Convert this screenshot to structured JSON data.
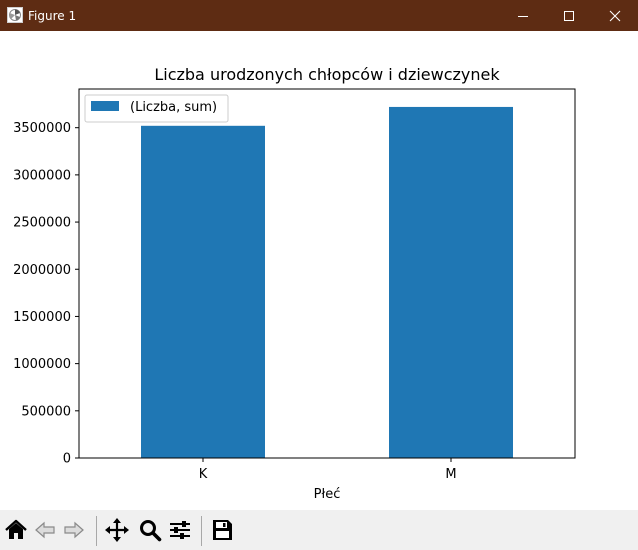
{
  "window": {
    "title": "Figure 1",
    "icon": "matplotlib-icon",
    "controls": [
      "minimize-icon",
      "maximize-icon",
      "close-icon"
    ]
  },
  "chart_data": {
    "type": "bar",
    "title": "Liczba urodzonych chłopców i dziewczynek",
    "xlabel": "Płeć",
    "ylabel": "",
    "categories": [
      "K",
      "M"
    ],
    "series": [
      {
        "name": "(Liczba, sum)",
        "values": [
          3520000,
          3720000
        ],
        "color": "#1f77b4"
      }
    ],
    "ylim": [
      0,
      3910000
    ],
    "yticks": [
      0,
      500000,
      1000000,
      1500000,
      2000000,
      2500000,
      3000000,
      3500000
    ],
    "ytick_labels": [
      "0",
      "500000",
      "1000000",
      "1500000",
      "2000000",
      "2500000",
      "3000000",
      "3500000"
    ],
    "grid": false,
    "legend_position": "upper-left"
  },
  "toolbar": {
    "buttons": [
      {
        "name": "home-button",
        "icon": "home-icon"
      },
      {
        "name": "back-button",
        "icon": "back-arrow-icon"
      },
      {
        "name": "forward-button",
        "icon": "forward-arrow-icon"
      },
      {
        "name": "pan-button",
        "icon": "move-icon"
      },
      {
        "name": "zoom-button",
        "icon": "zoom-icon"
      },
      {
        "name": "configure-subplots-button",
        "icon": "sliders-icon"
      },
      {
        "name": "save-button",
        "icon": "save-icon"
      }
    ]
  },
  "colors": {
    "titlebar": "#5e2c13",
    "bar": "#1f77b4",
    "toolbar_bg": "#f0f0f0"
  }
}
